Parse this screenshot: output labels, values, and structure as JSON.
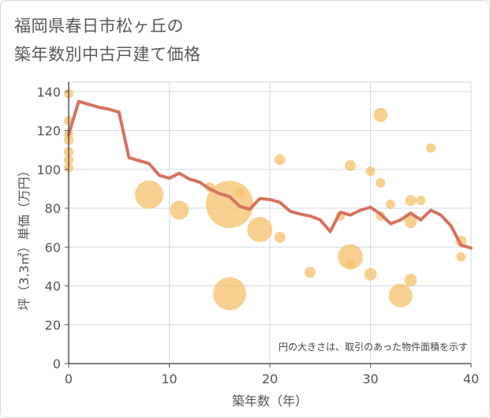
{
  "chart_data": {
    "type": "scatter",
    "title_lines": [
      "福岡県春日市松ヶ丘の",
      "築年数別中古戸建て価格"
    ],
    "xlabel": "築年数（年）",
    "ylabel": "坪（3.3㎡）単価（万円）",
    "xlim": [
      0,
      40
    ],
    "ylim": [
      0,
      145
    ],
    "x_ticks": [
      0,
      10,
      20,
      30,
      40
    ],
    "y_ticks": [
      0,
      20,
      40,
      60,
      80,
      100,
      120,
      140
    ],
    "grid": true,
    "note": "円の大きさは、取引のあった物件面積を示す",
    "colors": {
      "line": "#d4735e",
      "bubble": "#f5c06a",
      "grid": "#d0dbe5",
      "axis": "#555555"
    },
    "series": [
      {
        "name": "trend",
        "x": [
          0,
          1,
          2,
          3,
          4,
          5,
          6,
          7,
          8,
          9,
          10,
          11,
          12,
          13,
          14,
          15,
          16,
          17,
          18,
          19,
          20,
          21,
          22,
          23,
          24,
          25,
          26,
          27,
          28,
          29,
          30,
          31,
          32,
          33,
          34,
          35,
          36,
          37,
          38,
          39,
          40
        ],
        "y": [
          118,
          135,
          133.5,
          132,
          131,
          129.5,
          106,
          104.5,
          103,
          97,
          95.5,
          98,
          95,
          93.5,
          90,
          87.5,
          86,
          81,
          79.5,
          85,
          84.5,
          83,
          78.5,
          77,
          76,
          74,
          68,
          78,
          76.5,
          79,
          80.5,
          77,
          72,
          74,
          77.5,
          74,
          79,
          76.5,
          71,
          61,
          59.5
        ]
      }
    ],
    "bubbles": [
      {
        "x": 0,
        "y": 139,
        "size": 6
      },
      {
        "x": 0,
        "y": 125,
        "size": 6
      },
      {
        "x": 0,
        "y": 118,
        "size": 6
      },
      {
        "x": 0,
        "y": 115,
        "size": 6
      },
      {
        "x": 0,
        "y": 109,
        "size": 6
      },
      {
        "x": 0,
        "y": 105,
        "size": 6
      },
      {
        "x": 0,
        "y": 101,
        "size": 6
      },
      {
        "x": 8,
        "y": 87,
        "size": 18
      },
      {
        "x": 11,
        "y": 79,
        "size": 12
      },
      {
        "x": 14,
        "y": 91,
        "size": 6
      },
      {
        "x": 16,
        "y": 82,
        "size": 30
      },
      {
        "x": 16,
        "y": 36,
        "size": 21
      },
      {
        "x": 17,
        "y": 88,
        "size": 6
      },
      {
        "x": 19,
        "y": 69,
        "size": 16
      },
      {
        "x": 21,
        "y": 105,
        "size": 7
      },
      {
        "x": 21,
        "y": 65,
        "size": 7
      },
      {
        "x": 24,
        "y": 47,
        "size": 7
      },
      {
        "x": 27,
        "y": 76,
        "size": 6
      },
      {
        "x": 28,
        "y": 102,
        "size": 7
      },
      {
        "x": 28,
        "y": 55,
        "size": 16
      },
      {
        "x": 28,
        "y": 51,
        "size": 6
      },
      {
        "x": 30,
        "y": 99,
        "size": 6
      },
      {
        "x": 30,
        "y": 46,
        "size": 8
      },
      {
        "x": 31,
        "y": 128,
        "size": 9
      },
      {
        "x": 31,
        "y": 93,
        "size": 6
      },
      {
        "x": 31,
        "y": 76,
        "size": 6
      },
      {
        "x": 32,
        "y": 82,
        "size": 6
      },
      {
        "x": 33,
        "y": 35,
        "size": 15
      },
      {
        "x": 34,
        "y": 84,
        "size": 7
      },
      {
        "x": 34,
        "y": 73,
        "size": 8
      },
      {
        "x": 34,
        "y": 43,
        "size": 8
      },
      {
        "x": 35,
        "y": 84,
        "size": 6
      },
      {
        "x": 36,
        "y": 111,
        "size": 6
      },
      {
        "x": 39,
        "y": 63,
        "size": 7
      },
      {
        "x": 39,
        "y": 55,
        "size": 6
      }
    ]
  }
}
